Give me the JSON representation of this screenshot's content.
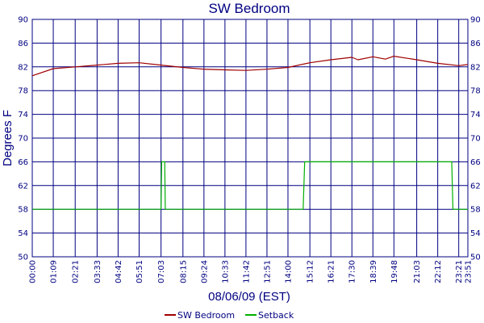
{
  "chart_data": {
    "type": "line",
    "title": "SW Bedroom",
    "xlabel": "08/06/09 (EST)",
    "ylabel": "Degrees F",
    "ylim": [
      50,
      90
    ],
    "yticks": [
      50,
      54,
      58,
      62,
      66,
      70,
      74,
      78,
      82,
      86,
      90
    ],
    "x_ticks": [
      "00:00",
      "01:09",
      "02:21",
      "03:33",
      "04:42",
      "05:51",
      "07:03",
      "08:15",
      "09:24",
      "10:33",
      "11:42",
      "12:51",
      "14:00",
      "15:12",
      "16:21",
      "17:30",
      "18:39",
      "19:48",
      "21:03",
      "22:12",
      "23:21",
      "23:51"
    ],
    "grid": true,
    "legend_position": "bottom",
    "colors": {
      "grid": "#000080",
      "axis_text": "#000080"
    },
    "series": [
      {
        "name": "SW Bedroom",
        "color": "#a00000",
        "x": [
          "00:00",
          "01:09",
          "02:21",
          "03:33",
          "04:42",
          "05:51",
          "07:03",
          "08:15",
          "09:24",
          "10:33",
          "11:42",
          "12:51",
          "14:00",
          "15:12",
          "16:21",
          "17:30",
          "17:50",
          "18:39",
          "19:20",
          "19:48",
          "21:03",
          "22:12",
          "23:21",
          "23:51"
        ],
        "values": [
          80.5,
          81.7,
          82.0,
          82.3,
          82.6,
          82.7,
          82.3,
          81.9,
          81.6,
          81.5,
          81.4,
          81.6,
          81.9,
          82.7,
          83.2,
          83.6,
          83.2,
          83.7,
          83.3,
          83.8,
          83.2,
          82.6,
          82.2,
          82.4
        ]
      },
      {
        "name": "Setback",
        "color": "#00b000",
        "x": [
          "00:00",
          "07:03",
          "07:05",
          "07:15",
          "07:17",
          "14:50",
          "14:55",
          "22:58",
          "23:02",
          "23:51"
        ],
        "values": [
          58,
          58,
          66,
          66,
          58,
          58,
          66,
          66,
          58,
          58
        ]
      }
    ]
  }
}
